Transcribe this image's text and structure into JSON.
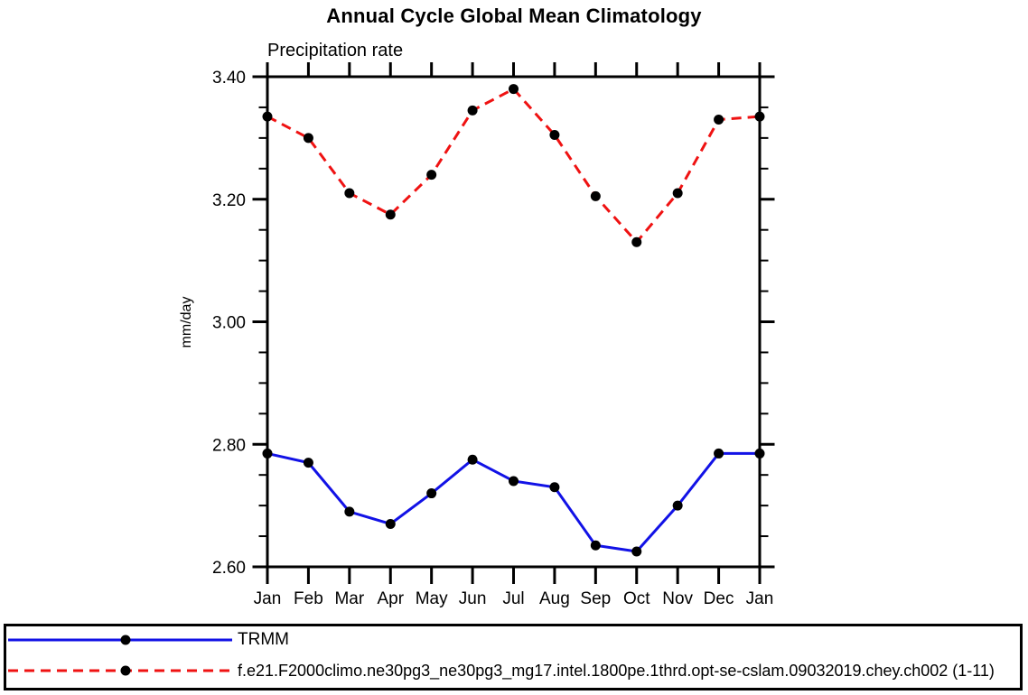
{
  "chart_data": {
    "type": "line",
    "title": "Annual Cycle Global Mean Climatology",
    "subtitle": "Precipitation rate",
    "xlabel": "",
    "ylabel": "mm/day",
    "categories": [
      "Jan",
      "Feb",
      "Mar",
      "Apr",
      "May",
      "Jun",
      "Jul",
      "Aug",
      "Sep",
      "Oct",
      "Nov",
      "Dec",
      "Jan"
    ],
    "ylim": [
      2.6,
      3.4
    ],
    "ytick_major": 0.2,
    "ytick_minor": 0.05,
    "ytick_labels": [
      "2.60",
      "2.80",
      "3.00",
      "3.20",
      "3.40"
    ],
    "grid": false,
    "legend_position": "bottom-outside-box",
    "axis_color": "#000000",
    "marker_shape": "filled-circle",
    "series": [
      {
        "name": "TRMM",
        "color": "#1212e6",
        "line_style": "solid",
        "marker_color": "#000000",
        "values": [
          2.785,
          2.77,
          2.69,
          2.67,
          2.72,
          2.775,
          2.74,
          2.73,
          2.635,
          2.625,
          2.7,
          2.785,
          2.785
        ]
      },
      {
        "name": "f.e21.F2000climo.ne30pg3_ne30pg3_mg17.intel.1800pe.1thrd.opt-se-cslam.09032019.chey.ch002 (1-11)",
        "color": "#ef1212",
        "line_style": "dashed",
        "marker_color": "#000000",
        "values": [
          3.335,
          3.3,
          3.21,
          3.175,
          3.24,
          3.345,
          3.38,
          3.305,
          3.205,
          3.13,
          3.21,
          3.33,
          3.335
        ]
      }
    ]
  }
}
